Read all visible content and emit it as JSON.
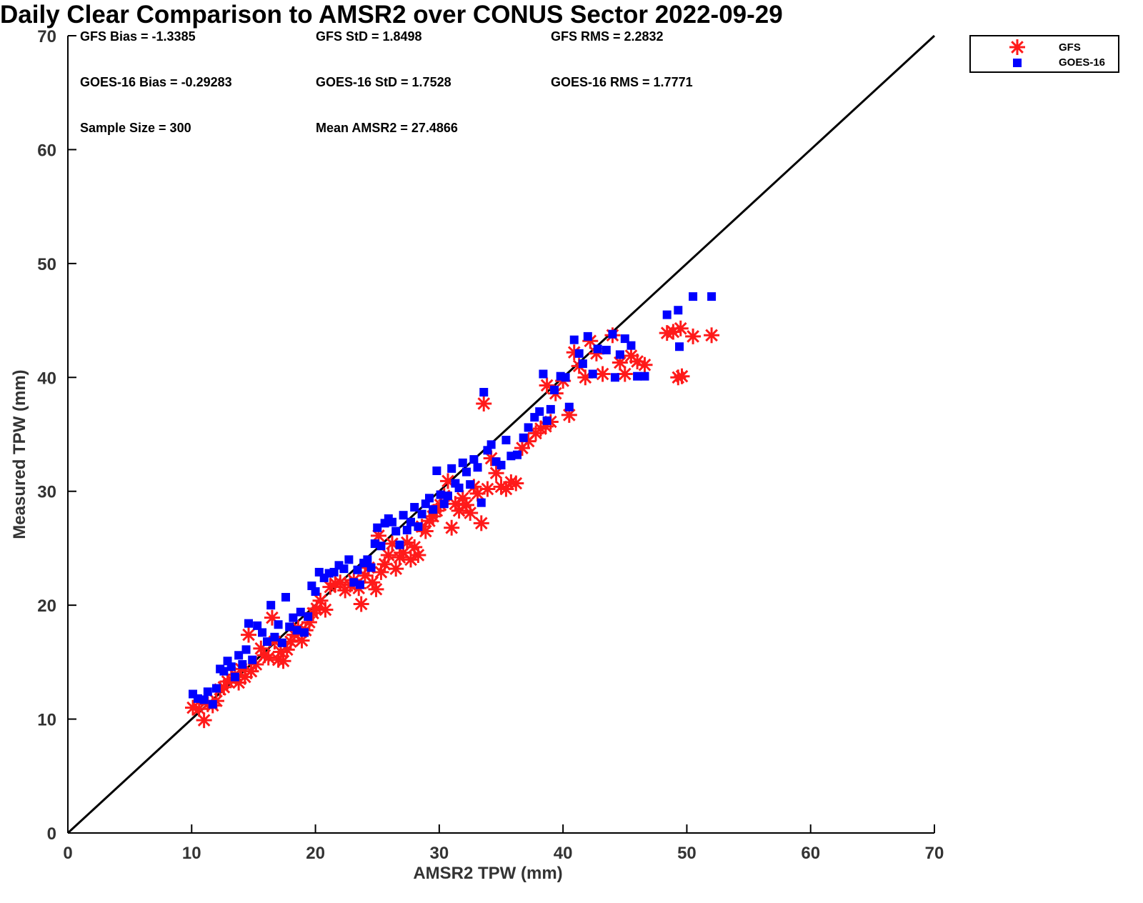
{
  "chart_data": {
    "type": "scatter",
    "title": "Daily Clear Comparison to AMSR2 over CONUS Sector 2022-09-29",
    "xlabel": "AMSR2 TPW (mm)",
    "ylabel": "Measured TPW (mm)",
    "xlim": [
      0,
      70
    ],
    "ylim": [
      0,
      70
    ],
    "xticks": [
      0,
      10,
      20,
      30,
      40,
      50,
      60,
      70
    ],
    "yticks": [
      0,
      10,
      20,
      30,
      40,
      50,
      60,
      70
    ],
    "reference_line": "1:1",
    "grid": false,
    "legend_position": "outside top-right",
    "stats": [
      [
        "GFS Bias = -1.3385",
        "GFS StD = 1.8498",
        "GFS RMS = 2.2832"
      ],
      [
        "GOES-16 Bias = -0.29283",
        "GOES-16 StD = 1.7528",
        "GOES-16 RMS = 1.7771"
      ],
      [
        "Sample Size = 300",
        "Mean AMSR2 = 27.4866"
      ]
    ],
    "series": [
      {
        "name": "GFS",
        "marker": "asterisk",
        "color": "#ff1a1a",
        "points": [
          [
            10.1,
            11.0
          ],
          [
            10.6,
            10.9
          ],
          [
            11.0,
            9.9
          ],
          [
            11.3,
            11.3
          ],
          [
            11.7,
            11.2
          ],
          [
            12.0,
            11.6
          ],
          [
            12.3,
            12.6
          ],
          [
            12.6,
            12.8
          ],
          [
            12.9,
            13.3
          ],
          [
            13.2,
            13.5
          ],
          [
            13.5,
            13.9
          ],
          [
            13.8,
            13.2
          ],
          [
            14.0,
            14.4
          ],
          [
            14.3,
            13.7
          ],
          [
            14.6,
            17.4
          ],
          [
            14.8,
            14.2
          ],
          [
            15.2,
            14.8
          ],
          [
            15.6,
            16.2
          ],
          [
            15.9,
            15.6
          ],
          [
            16.2,
            15.4
          ],
          [
            16.5,
            18.9
          ],
          [
            16.7,
            16.8
          ],
          [
            17.0,
            15.2
          ],
          [
            17.2,
            15.9
          ],
          [
            17.4,
            15.1
          ],
          [
            17.7,
            16.1
          ],
          [
            18.0,
            16.8
          ],
          [
            18.3,
            17.4
          ],
          [
            18.6,
            18.0
          ],
          [
            18.9,
            16.9
          ],
          [
            19.2,
            17.8
          ],
          [
            19.5,
            18.5
          ],
          [
            19.8,
            19.3
          ],
          [
            20.1,
            19.7
          ],
          [
            20.4,
            20.4
          ],
          [
            20.8,
            19.6
          ],
          [
            21.2,
            21.6
          ],
          [
            21.6,
            21.9
          ],
          [
            22.0,
            22.0
          ],
          [
            22.4,
            21.3
          ],
          [
            22.8,
            21.8
          ],
          [
            23.1,
            22.2
          ],
          [
            23.5,
            21.5
          ],
          [
            23.7,
            20.1
          ],
          [
            24.0,
            22.6
          ],
          [
            24.3,
            23.3
          ],
          [
            24.6,
            22.0
          ],
          [
            24.9,
            21.4
          ],
          [
            25.1,
            26.1
          ],
          [
            25.3,
            22.9
          ],
          [
            25.6,
            23.6
          ],
          [
            25.9,
            24.4
          ],
          [
            26.2,
            25.4
          ],
          [
            26.5,
            23.2
          ],
          [
            26.8,
            24.2
          ],
          [
            27.1,
            24.6
          ],
          [
            27.4,
            25.5
          ],
          [
            27.7,
            24.0
          ],
          [
            28.0,
            25.1
          ],
          [
            28.3,
            24.4
          ],
          [
            28.6,
            26.9
          ],
          [
            28.9,
            26.5
          ],
          [
            29.2,
            27.4
          ],
          [
            29.5,
            27.8
          ],
          [
            29.8,
            28.3
          ],
          [
            30.1,
            28.8
          ],
          [
            30.4,
            29.6
          ],
          [
            30.7,
            30.9
          ],
          [
            31.0,
            26.8
          ],
          [
            31.3,
            28.9
          ],
          [
            31.6,
            28.3
          ],
          [
            31.9,
            29.4
          ],
          [
            32.2,
            28.8
          ],
          [
            32.5,
            28.1
          ],
          [
            32.8,
            30.4
          ],
          [
            33.1,
            29.8
          ],
          [
            33.4,
            27.2
          ],
          [
            33.6,
            37.7
          ],
          [
            33.9,
            30.2
          ],
          [
            34.2,
            32.9
          ],
          [
            34.6,
            31.6
          ],
          [
            35.0,
            30.4
          ],
          [
            35.4,
            30.2
          ],
          [
            35.8,
            30.8
          ],
          [
            36.2,
            30.7
          ],
          [
            36.7,
            33.8
          ],
          [
            37.2,
            34.4
          ],
          [
            37.8,
            35.1
          ],
          [
            38.2,
            35.5
          ],
          [
            38.6,
            35.7
          ],
          [
            39.0,
            36.1
          ],
          [
            38.7,
            39.3
          ],
          [
            39.4,
            38.6
          ],
          [
            40.0,
            39.7
          ],
          [
            40.5,
            36.7
          ],
          [
            40.9,
            42.2
          ],
          [
            41.3,
            41.0
          ],
          [
            41.8,
            40.0
          ],
          [
            42.2,
            43.2
          ],
          [
            42.7,
            42.1
          ],
          [
            43.2,
            40.3
          ],
          [
            44.0,
            43.7
          ],
          [
            44.6,
            41.3
          ],
          [
            45.0,
            40.3
          ],
          [
            45.5,
            41.9
          ],
          [
            46.0,
            41.4
          ],
          [
            46.6,
            41.1
          ],
          [
            48.4,
            43.9
          ],
          [
            48.9,
            44.0
          ],
          [
            49.3,
            40.0
          ],
          [
            49.5,
            44.3
          ],
          [
            49.6,
            40.1
          ],
          [
            50.5,
            43.6
          ],
          [
            52.0,
            43.7
          ]
        ]
      },
      {
        "name": "GOES-16",
        "marker": "square",
        "color": "#0000ff",
        "points": [
          [
            10.1,
            12.2
          ],
          [
            10.5,
            11.8
          ],
          [
            11.0,
            11.7
          ],
          [
            11.3,
            12.4
          ],
          [
            11.7,
            11.3
          ],
          [
            12.0,
            12.7
          ],
          [
            12.3,
            14.4
          ],
          [
            12.6,
            14.2
          ],
          [
            12.9,
            15.1
          ],
          [
            13.2,
            14.6
          ],
          [
            13.5,
            13.7
          ],
          [
            13.8,
            15.6
          ],
          [
            14.1,
            14.8
          ],
          [
            14.4,
            16.1
          ],
          [
            14.6,
            18.4
          ],
          [
            14.9,
            15.2
          ],
          [
            15.3,
            18.2
          ],
          [
            15.7,
            17.6
          ],
          [
            16.1,
            16.8
          ],
          [
            16.4,
            20.0
          ],
          [
            16.7,
            17.2
          ],
          [
            17.0,
            18.3
          ],
          [
            17.3,
            16.7
          ],
          [
            17.6,
            20.7
          ],
          [
            17.9,
            18.1
          ],
          [
            18.2,
            18.9
          ],
          [
            18.5,
            17.8
          ],
          [
            18.8,
            19.4
          ],
          [
            19.1,
            17.6
          ],
          [
            19.4,
            19.0
          ],
          [
            19.7,
            21.7
          ],
          [
            20.0,
            21.2
          ],
          [
            20.3,
            22.9
          ],
          [
            20.7,
            22.4
          ],
          [
            21.1,
            22.8
          ],
          [
            21.5,
            22.9
          ],
          [
            21.9,
            23.5
          ],
          [
            22.3,
            23.2
          ],
          [
            22.7,
            24.0
          ],
          [
            23.1,
            22.0
          ],
          [
            23.4,
            23.1
          ],
          [
            23.6,
            21.8
          ],
          [
            23.9,
            23.7
          ],
          [
            24.2,
            24.0
          ],
          [
            24.5,
            23.3
          ],
          [
            24.8,
            25.4
          ],
          [
            25.0,
            26.8
          ],
          [
            25.3,
            25.2
          ],
          [
            25.6,
            27.2
          ],
          [
            25.9,
            27.6
          ],
          [
            26.2,
            27.3
          ],
          [
            26.5,
            26.5
          ],
          [
            26.8,
            25.3
          ],
          [
            27.1,
            27.9
          ],
          [
            27.4,
            26.6
          ],
          [
            27.7,
            27.3
          ],
          [
            28.0,
            28.6
          ],
          [
            28.3,
            26.9
          ],
          [
            28.6,
            28.0
          ],
          [
            28.9,
            28.9
          ],
          [
            29.2,
            29.4
          ],
          [
            29.5,
            28.4
          ],
          [
            29.8,
            31.8
          ],
          [
            30.1,
            29.7
          ],
          [
            30.4,
            28.9
          ],
          [
            30.7,
            29.6
          ],
          [
            31.0,
            32.0
          ],
          [
            31.3,
            30.7
          ],
          [
            31.6,
            30.3
          ],
          [
            31.9,
            32.5
          ],
          [
            32.2,
            31.7
          ],
          [
            32.5,
            30.6
          ],
          [
            32.8,
            32.8
          ],
          [
            33.1,
            32.1
          ],
          [
            33.4,
            29.0
          ],
          [
            33.6,
            38.7
          ],
          [
            33.9,
            33.6
          ],
          [
            34.2,
            34.1
          ],
          [
            34.6,
            32.6
          ],
          [
            35.0,
            32.3
          ],
          [
            35.4,
            34.5
          ],
          [
            35.8,
            33.1
          ],
          [
            36.3,
            33.2
          ],
          [
            36.8,
            34.7
          ],
          [
            37.2,
            35.6
          ],
          [
            37.7,
            36.5
          ],
          [
            38.1,
            37.0
          ],
          [
            38.4,
            40.3
          ],
          [
            38.7,
            36.2
          ],
          [
            39.0,
            37.2
          ],
          [
            39.3,
            38.9
          ],
          [
            39.8,
            40.1
          ],
          [
            40.2,
            40.0
          ],
          [
            40.5,
            37.4
          ],
          [
            40.9,
            43.3
          ],
          [
            41.3,
            42.1
          ],
          [
            41.6,
            41.2
          ],
          [
            42.0,
            43.6
          ],
          [
            42.4,
            40.3
          ],
          [
            42.8,
            42.5
          ],
          [
            43.5,
            42.4
          ],
          [
            44.0,
            43.8
          ],
          [
            44.2,
            40.0
          ],
          [
            44.6,
            42.0
          ],
          [
            45.0,
            43.4
          ],
          [
            45.5,
            42.8
          ],
          [
            46.0,
            40.1
          ],
          [
            46.6,
            40.1
          ],
          [
            48.4,
            45.5
          ],
          [
            49.3,
            45.9
          ],
          [
            49.4,
            42.7
          ],
          [
            50.5,
            47.1
          ],
          [
            52.0,
            47.1
          ]
        ]
      }
    ]
  }
}
